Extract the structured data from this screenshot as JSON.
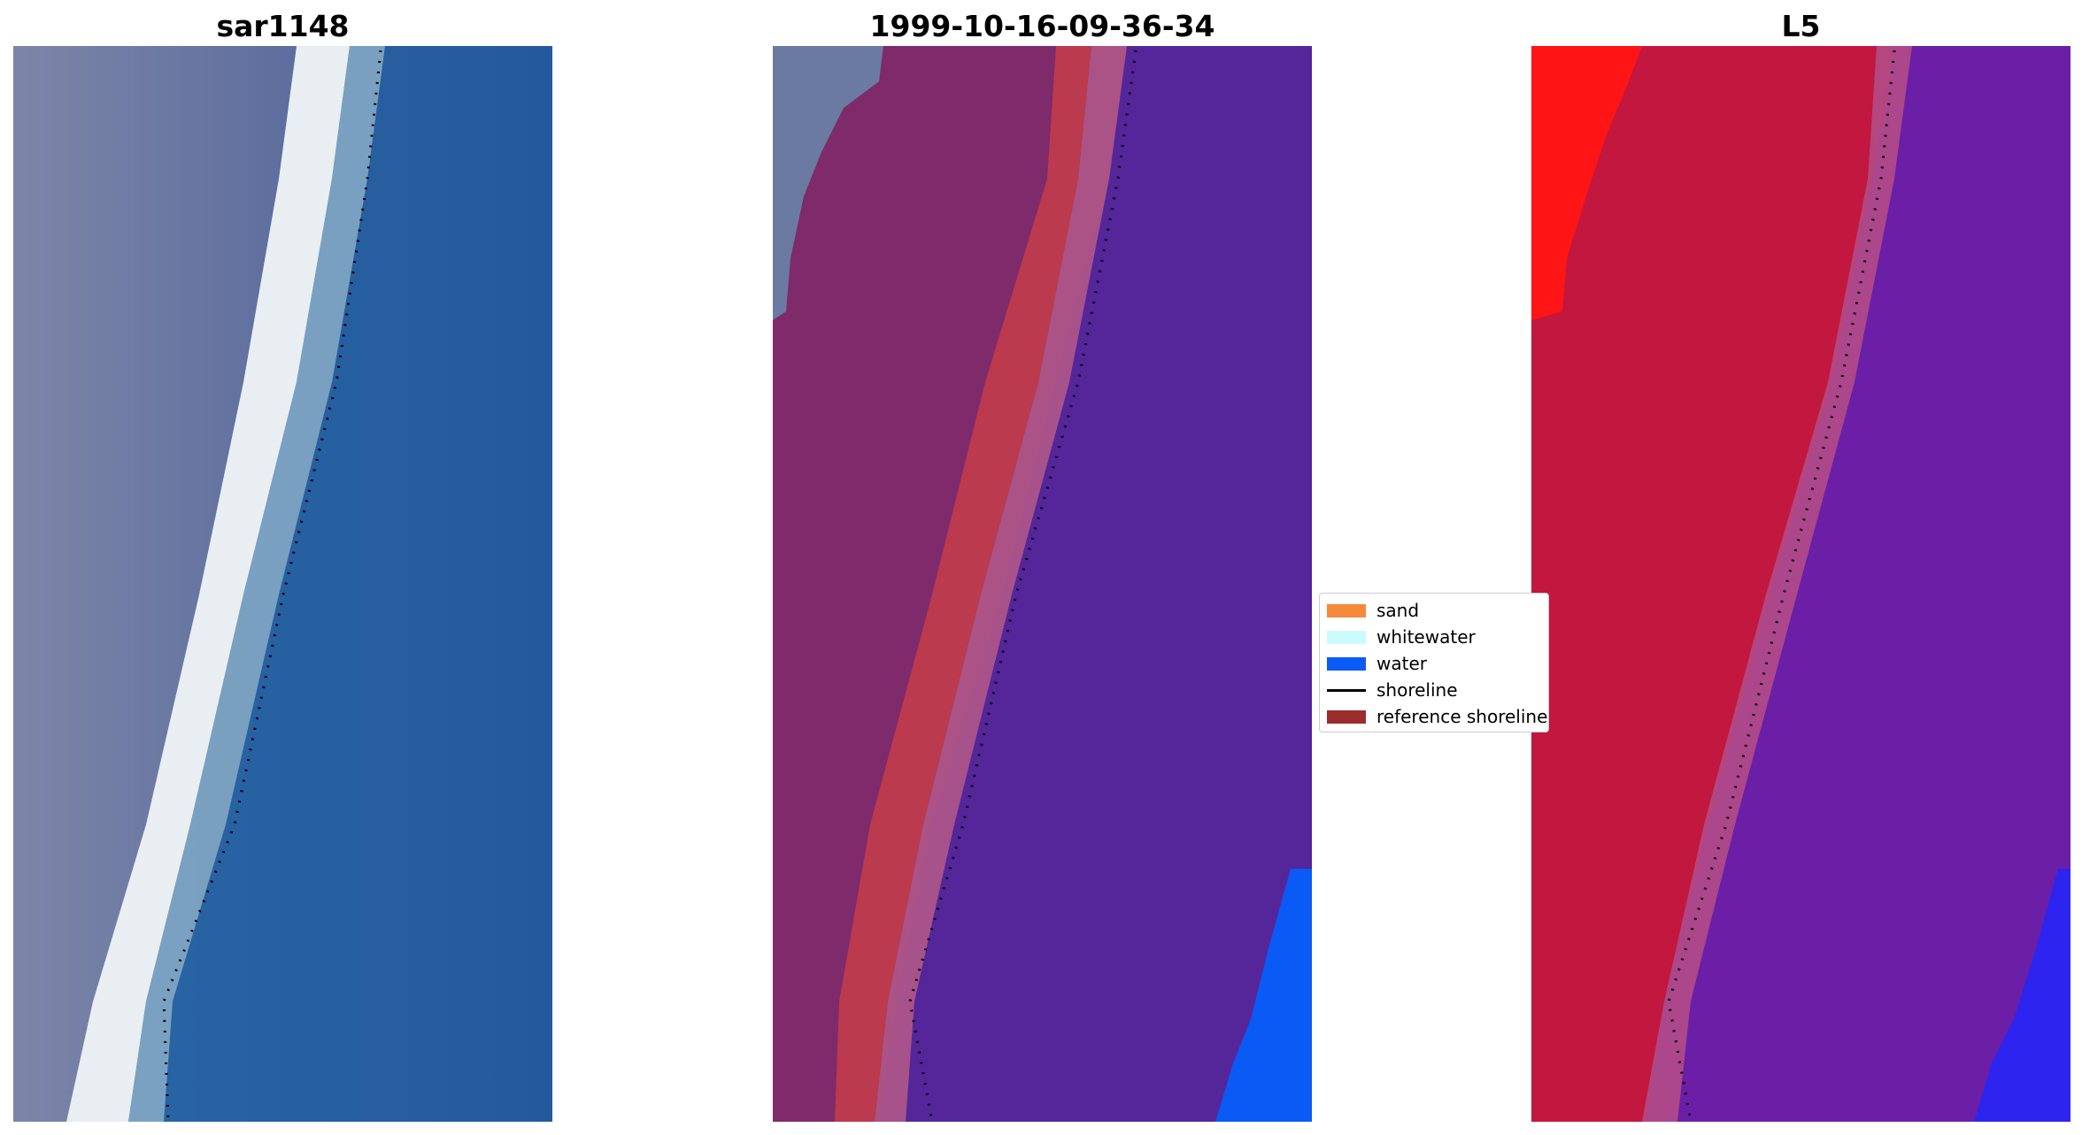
{
  "panels": [
    {
      "title": "sar1148",
      "image": "rgb satellite image of beach"
    },
    {
      "title": "1999-10-16-09-36-34",
      "image": "classified image overlay"
    },
    {
      "title": "L5",
      "image": "spectral index image"
    }
  ],
  "legend": {
    "items": [
      {
        "label": "sand",
        "color": "#f58a3a"
      },
      {
        "label": "whitewater",
        "color": "#ccfbfb"
      },
      {
        "label": "water",
        "color": "#0a5af5"
      },
      {
        "label": "shoreline",
        "color": "#000000"
      },
      {
        "label": "reference shoreline",
        "color": "#9a2d2d"
      }
    ]
  }
}
